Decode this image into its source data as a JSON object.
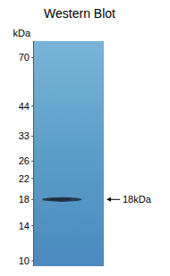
{
  "chart_data": {
    "type": "blot",
    "title": "Western Blot",
    "ylabel": "kDa",
    "log": "y",
    "ylim": [
      9.5,
      82
    ],
    "yticks": [
      70,
      44,
      33,
      26,
      22,
      18,
      14,
      10
    ],
    "values": [
      18
    ],
    "color": "#263040",
    "grid": false,
    "annotations": [
      {
        "text": "18kDa",
        "y": 18
      }
    ]
  }
}
